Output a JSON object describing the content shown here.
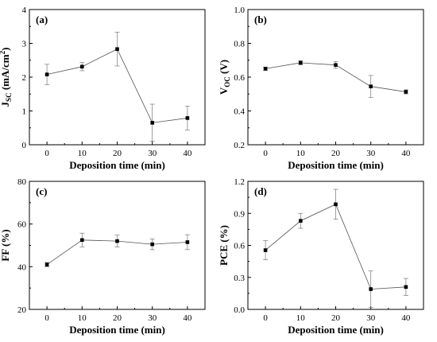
{
  "chart_data": [
    {
      "type": "line",
      "panel_label": "(a)",
      "x": [
        0,
        10,
        20,
        30,
        40
      ],
      "series": [
        {
          "values": [
            2.08,
            2.31,
            2.83,
            0.65,
            0.79
          ],
          "errors": [
            0.3,
            0.12,
            0.5,
            0.55,
            0.35
          ]
        }
      ],
      "xlabel": "Deposition time (min)",
      "ylabel": "J",
      "ylabel_sub": "SC",
      "ylabel_unit": "(mA/cm",
      "ylabel_sup": "2",
      "ylabel_close": ")",
      "xlim": [
        -5,
        45
      ],
      "ylim": [
        0,
        4
      ],
      "xticks": [
        "0",
        "10",
        "20",
        "30",
        "40"
      ],
      "yticks": [
        "0",
        "1",
        "2",
        "3",
        "4"
      ],
      "grid": false
    },
    {
      "type": "line",
      "panel_label": "(b)",
      "x": [
        0,
        10,
        20,
        30,
        40
      ],
      "series": [
        {
          "values": [
            0.65,
            0.685,
            0.672,
            0.545,
            0.513
          ],
          "errors": [
            0.01,
            0.012,
            0.02,
            0.065,
            0.012
          ]
        }
      ],
      "xlabel": "Deposition time (min)",
      "ylabel": "V",
      "ylabel_sub": "OC",
      "ylabel_unit": "(V)",
      "xlim": [
        -5,
        45
      ],
      "ylim": [
        0.2,
        1.0
      ],
      "xticks": [
        "0",
        "10",
        "20",
        "30",
        "40"
      ],
      "yticks": [
        "0.2",
        "0.4",
        "0.6",
        "0.8",
        "1.0"
      ],
      "grid": false
    },
    {
      "type": "line",
      "panel_label": "(c)",
      "x": [
        0,
        10,
        20,
        30,
        40
      ],
      "series": [
        {
          "values": [
            41,
            52.5,
            52,
            50.5,
            51.5
          ],
          "errors": [
            1,
            3.2,
            2.8,
            2.5,
            3.5
          ]
        }
      ],
      "xlabel": "Deposition time (min)",
      "ylabel": "FF (%)",
      "xlim": [
        -5,
        45
      ],
      "ylim": [
        20,
        80
      ],
      "xticks": [
        "0",
        "10",
        "20",
        "30",
        "40"
      ],
      "yticks": [
        "20",
        "40",
        "60",
        "80"
      ],
      "grid": false
    },
    {
      "type": "line",
      "panel_label": "(d)",
      "x": [
        0,
        10,
        20,
        30,
        40
      ],
      "series": [
        {
          "values": [
            0.555,
            0.83,
            0.985,
            0.19,
            0.21
          ],
          "errors": [
            0.09,
            0.07,
            0.14,
            0.17,
            0.08
          ]
        }
      ],
      "xlabel": "Deposition time (min)",
      "ylabel": "PCE (%)",
      "xlim": [
        -5,
        45
      ],
      "ylim": [
        0,
        1.2
      ],
      "xticks": [
        "0",
        "10",
        "20",
        "30",
        "40"
      ],
      "yticks": [
        "0.0",
        "0.3",
        "0.6",
        "0.9",
        "1.2"
      ],
      "grid": false
    }
  ]
}
